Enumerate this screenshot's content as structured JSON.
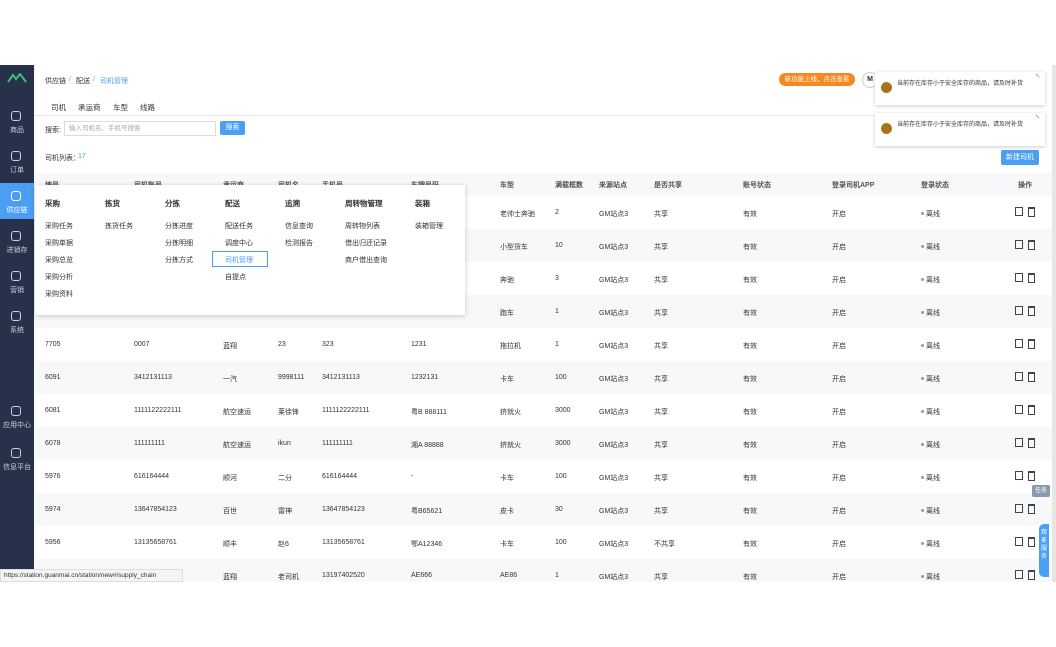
{
  "sidebar": {
    "items": [
      "商品",
      "订单",
      "供应链",
      "进销存",
      "营销",
      "系统",
      "应用中心",
      "信息平台"
    ]
  },
  "breadcrumb": {
    "items": [
      "供应链",
      "配送",
      "司机管理"
    ],
    "separator": "/"
  },
  "promo_button": "新功能上线，点击查看",
  "avatar": "M",
  "toasts": [
    "当前存在库存小于安全库存的商品，请及时补货",
    "当前存在库存小于安全库存的商品，请及时补货"
  ],
  "tabs": [
    "司机",
    "承运商",
    "车型",
    "线路"
  ],
  "search": {
    "label": "搜索:",
    "placeholder": "输入司机名、手机号搜索",
    "button": "搜索"
  },
  "list": {
    "label": "司机列表：",
    "count": "17",
    "new_button": "新建司机"
  },
  "table": {
    "headers": [
      "编号",
      "司机账号",
      "承运商",
      "司机名",
      "手机号",
      "车牌号码",
      "车型",
      "满载框数",
      "来源站点",
      "是否共享",
      "账号状态",
      "登录司机APP",
      "登录状态",
      "操作"
    ],
    "rows": [
      [
        null,
        null,
        null,
        null,
        null,
        null,
        "老帅士奔驰",
        "2",
        "GM站点3",
        "共享",
        "有效",
        "开启",
        "离线"
      ],
      [
        null,
        null,
        null,
        null,
        null,
        null,
        "小型货车",
        "10",
        "GM站点3",
        "共享",
        "有效",
        "开启",
        "离线"
      ],
      [
        null,
        null,
        null,
        null,
        null,
        null,
        "奔驰",
        "3",
        "GM站点3",
        "共享",
        "有效",
        "开启",
        "离线"
      ],
      [
        null,
        null,
        null,
        null,
        null,
        null,
        "跑车",
        "1",
        "GM站点3",
        "共享",
        "有效",
        "开启",
        "离线"
      ],
      [
        "7705",
        "0007",
        "蓝翔",
        "23",
        "323",
        "1231",
        "拖拉机",
        "1",
        "GM站点3",
        "共享",
        "有效",
        "开启",
        "离线"
      ],
      [
        "6091",
        "3412131113",
        "一汽",
        "9998111",
        "3412131113",
        "1232131",
        "卡车",
        "100",
        "GM站点3",
        "共享",
        "有效",
        "开启",
        "离线"
      ],
      [
        "6081",
        "1111122222111",
        "航空速运",
        "莱徐锋",
        "1111122222111",
        "粤B 888111",
        "挤就火",
        "3000",
        "GM站点3",
        "共享",
        "有效",
        "开启",
        "离线"
      ],
      [
        "6078",
        "111111111",
        "航空速运",
        "ikun",
        "111111111",
        "湘A 88888",
        "挤就火",
        "3000",
        "GM站点3",
        "共享",
        "有效",
        "开启",
        "离线"
      ],
      [
        "5976",
        "616164444",
        "顺河",
        "二分",
        "616164444",
        "-",
        "卡车",
        "100",
        "GM站点3",
        "共享",
        "有效",
        "开启",
        "离线"
      ],
      [
        "5974",
        "13647854123",
        "百世",
        "雷神",
        "13647854123",
        "粤B65621",
        "皮卡",
        "30",
        "GM站点3",
        "共享",
        "有效",
        "开启",
        "离线"
      ],
      [
        "5956",
        "13135658761",
        "顺丰",
        "赵6",
        "13135658761",
        "鄂A12346",
        "卡车",
        "100",
        "GM站点3",
        "不共享",
        "有效",
        "开启",
        "离线"
      ],
      [
        null,
        null,
        "蓝翔",
        "老司机",
        "13197402520",
        "AE666",
        "AE86",
        "1",
        "GM站点3",
        "共享",
        "有效",
        "开启",
        "离线"
      ]
    ]
  },
  "menu": [
    {
      "title": "采购",
      "items": [
        "采购任务",
        "采购单据",
        "采购总览",
        "采购分析",
        "采购资料"
      ]
    },
    {
      "title": "拣货",
      "items": [
        "拣货任务"
      ]
    },
    {
      "title": "分拣",
      "items": [
        "分拣进度",
        "分拣明细",
        "分拣方式"
      ]
    },
    {
      "title": "配送",
      "items": [
        "配送任务",
        "调度中心",
        "司机管理",
        "自提点"
      ]
    },
    {
      "title": "追溯",
      "items": [
        "信息查询",
        "检测报告"
      ]
    },
    {
      "title": "周转物管理",
      "items": [
        "周转物列表",
        "借出归还记录",
        "商户借出查询"
      ]
    },
    {
      "title": "装箱",
      "items": [
        "装箱管理"
      ]
    }
  ],
  "float_task": "任务",
  "float_service": "观麦服务",
  "status_url": "https://station.guanmai.cn/station/new#/supply_chain"
}
